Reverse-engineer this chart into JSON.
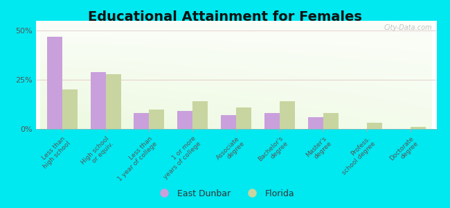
{
  "title": "Educational Attainment for Females",
  "categories": [
    "Less than\nhigh school",
    "High school\nor equiv.",
    "Less than\n1 year of college",
    "1 or more\nyears of college",
    "Associate\ndegree",
    "Bachelor's\ndegree",
    "Master's\ndegree",
    "Profess.\nschool degree",
    "Doctorate\ndegree"
  ],
  "east_dunbar": [
    47.0,
    29.0,
    8.0,
    9.0,
    7.0,
    8.0,
    6.0,
    0.0,
    0.0
  ],
  "florida": [
    20.0,
    28.0,
    10.0,
    14.0,
    11.0,
    14.0,
    8.0,
    3.0,
    1.0
  ],
  "east_dunbar_color": "#c9a0dc",
  "florida_color": "#c8d5a0",
  "background_outer": "#00e8f0",
  "background_top": "#ffffff",
  "background_bottom": "#d8e8c0",
  "yticks": [
    0,
    25,
    50
  ],
  "ylim": [
    0,
    55
  ],
  "bar_width": 0.35,
  "title_fontsize": 14,
  "legend_labels": [
    "East Dunbar",
    "Florida"
  ],
  "watermark": "City-Data.com"
}
